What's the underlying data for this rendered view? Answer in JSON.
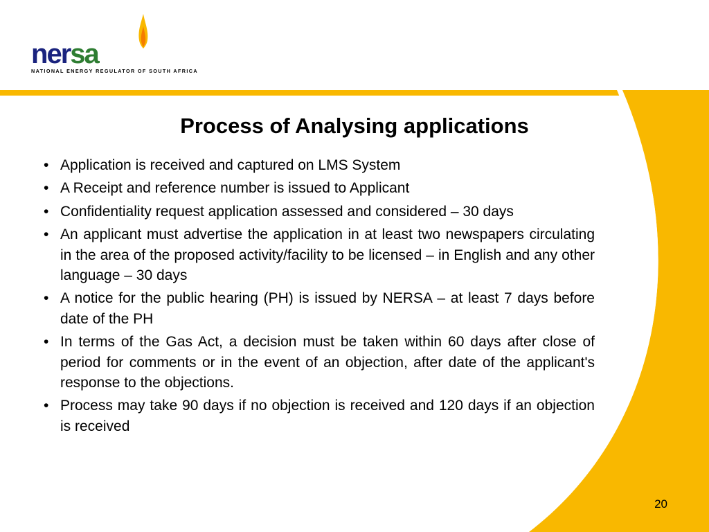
{
  "logo": {
    "tagline": "NATIONAL ENERGY REGULATOR OF SOUTH AFRICA",
    "letters": [
      "n",
      "e",
      "r",
      "s",
      "a"
    ],
    "primary_color": "#1a237e",
    "accent_color": "#2e7d32",
    "flame_color": "#f9b800"
  },
  "theme": {
    "bar_color": "#f9b800",
    "curve_color": "#f9b800",
    "background": "#ffffff",
    "text_color": "#000000"
  },
  "slide": {
    "title": "Process of Analysing applications",
    "bullets": [
      {
        "text": "Application is received and captured on LMS System",
        "justify": false
      },
      {
        "text": "A Receipt and reference number is issued to Applicant",
        "justify": false
      },
      {
        "text": "Confidentiality request application assessed and considered – 30 days",
        "justify": false
      },
      {
        "text": "An applicant must advertise the application in at least two newspapers circulating in the area of the proposed activity/facility to be licensed – in English and any other language – 30 days",
        "justify": true
      },
      {
        "text": "A notice for the public hearing (PH) is issued by NERSA – at least 7 days before date of the PH",
        "justify": true
      },
      {
        "text": "In terms of the Gas Act, a decision must be taken within 60 days after close of period for comments or in the event of an objection, after date of the applicant's response to the objections.",
        "justify": true
      },
      {
        "text": "Process may take 90 days if no objection is received and 120 days if an objection is received",
        "justify": true
      }
    ],
    "page_number": "20"
  }
}
